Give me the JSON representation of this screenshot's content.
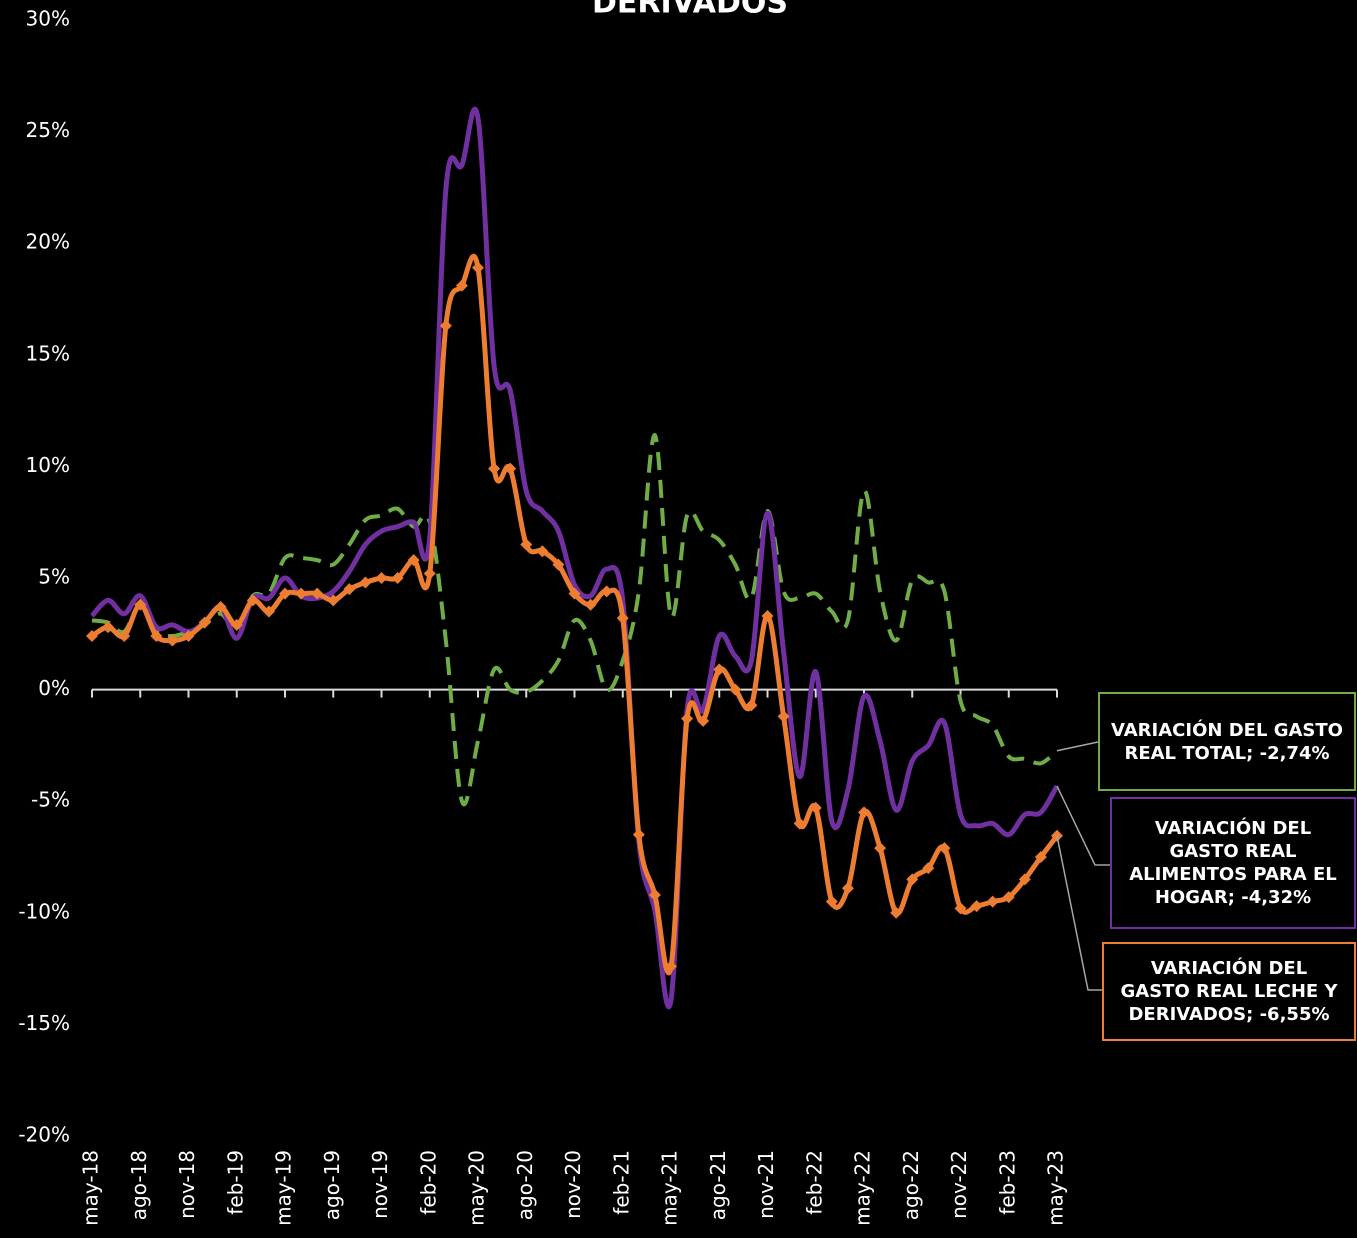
{
  "chart_data": {
    "type": "line",
    "title": "DERIVADOS",
    "categories": [
      "may-18",
      null,
      null,
      "ago-18",
      null,
      null,
      "nov-18",
      null,
      null,
      "feb-19",
      null,
      null,
      "may-19",
      null,
      null,
      "ago-19",
      null,
      null,
      "nov-19",
      null,
      null,
      "feb-20",
      null,
      null,
      "may-20",
      null,
      null,
      "ago-20",
      null,
      null,
      "nov-20",
      null,
      null,
      "feb-21",
      null,
      null,
      "may-21",
      null,
      null,
      "ago-21",
      null,
      null,
      "nov-21",
      null,
      null,
      "feb-22",
      null,
      null,
      "may-22",
      null,
      null,
      "ago-22",
      null,
      null,
      "nov-22",
      null,
      null,
      "feb-23",
      null,
      null,
      "may-23"
    ],
    "series": [
      {
        "name": "VARIACIÓN DEL GASTO REAL TOTAL",
        "color": "#70ad47",
        "dashed": true,
        "markers": false,
        "values": [
          3.1,
          3.0,
          2.6,
          3.8,
          2.6,
          2.4,
          2.6,
          2.9,
          3.4,
          2.7,
          4.2,
          4.3,
          5.9,
          5.9,
          5.8,
          5.6,
          6.5,
          7.6,
          7.8,
          8.1,
          7.3,
          7.5,
          2.2,
          -5.0,
          -2.3,
          0.9,
          0,
          -0.1,
          0.4,
          1.3,
          3.1,
          2.2,
          0,
          1.3,
          4.4,
          11.4,
          3.3,
          7.8,
          7.1,
          6.7,
          5.6,
          4.1,
          8.0,
          4.4,
          4.1,
          4.3,
          3.5,
          3.1,
          8.9,
          4.4,
          2.2,
          4.9,
          4.8,
          4.4,
          -0.5,
          -1.2,
          -1.6,
          -3.0,
          -3.1,
          -3.3,
          -2.74
        ]
      },
      {
        "name": "VARIACIÓN DEL GASTO REAL ALIMENTOS PARA EL HOGAR",
        "color": "#7030a0",
        "dashed": false,
        "markers": false,
        "values": [
          3.3,
          4.0,
          3.4,
          4.2,
          2.8,
          2.9,
          2.6,
          3.0,
          3.7,
          2.3,
          4.1,
          4.1,
          5.0,
          4.2,
          4.1,
          4.4,
          5.3,
          6.5,
          7.1,
          7.3,
          7.5,
          6.8,
          22.4,
          23.5,
          25.6,
          14.5,
          13.4,
          8.9,
          8.0,
          7.1,
          4.7,
          4.2,
          5.4,
          4.0,
          -6.8,
          -9.9,
          -13.9,
          -0.9,
          -0.9,
          2.4,
          1.5,
          1.3,
          7.9,
          1.7,
          -3.9,
          0.8,
          -5.9,
          -4.5,
          -0.3,
          -2.3,
          -5.4,
          -3.2,
          -2.5,
          -1.5,
          -5.6,
          -6.1,
          -6.0,
          -6.5,
          -5.6,
          -5.5,
          -4.32
        ]
      },
      {
        "name": "VARIACIÓN DEL GASTO REAL LECHE Y DERIVADOS",
        "color": "#ed7d31",
        "dashed": false,
        "markers": true,
        "values": [
          2.4,
          2.8,
          2.4,
          3.8,
          2.4,
          2.2,
          2.4,
          3.0,
          3.7,
          2.9,
          4.0,
          3.5,
          4.3,
          4.3,
          4.3,
          4.0,
          4.5,
          4.8,
          5.0,
          5.0,
          5.8,
          5.2,
          16.3,
          18.1,
          18.9,
          9.9,
          9.9,
          6.5,
          6.2,
          5.6,
          4.3,
          3.8,
          4.4,
          3.2,
          -6.5,
          -9.2,
          -12.4,
          -1.3,
          -1.4,
          0.9,
          0,
          -0.7,
          3.3,
          -1.2,
          -6.0,
          -5.3,
          -9.5,
          -8.9,
          -5.5,
          -7.1,
          -10.0,
          -8.5,
          -8.0,
          -7.1,
          -9.8,
          -9.7,
          -9.5,
          -9.3,
          -8.5,
          -7.5,
          -6.55
        ]
      }
    ],
    "annotations": [
      {
        "series": 0,
        "text": "VARIACIÓN DEL GASTO REAL TOTAL; -2,74%"
      },
      {
        "series": 1,
        "text": "VARIACIÓN DEL GASTO REAL ALIMENTOS PARA EL HOGAR; -4,32%"
      },
      {
        "series": 2,
        "text": "VARIACIÓN DEL GASTO REAL LECHE Y DERIVADOS; -6,55%"
      }
    ],
    "ylim": [
      -20,
      30
    ],
    "yticks": [
      {
        "value": -20,
        "label": "-20%"
      },
      {
        "value": -15,
        "label": "-15%"
      },
      {
        "value": -10,
        "label": "-10%"
      },
      {
        "value": -5,
        "label": "-5%"
      },
      {
        "value": 0,
        "label": "0%"
      },
      {
        "value": 5,
        "label": "5%"
      },
      {
        "value": 10,
        "label": "10%"
      },
      {
        "value": 15,
        "label": "15%"
      },
      {
        "value": 20,
        "label": "20%"
      },
      {
        "value": 25,
        "label": "25%"
      },
      {
        "value": 30,
        "label": "30%"
      }
    ]
  }
}
